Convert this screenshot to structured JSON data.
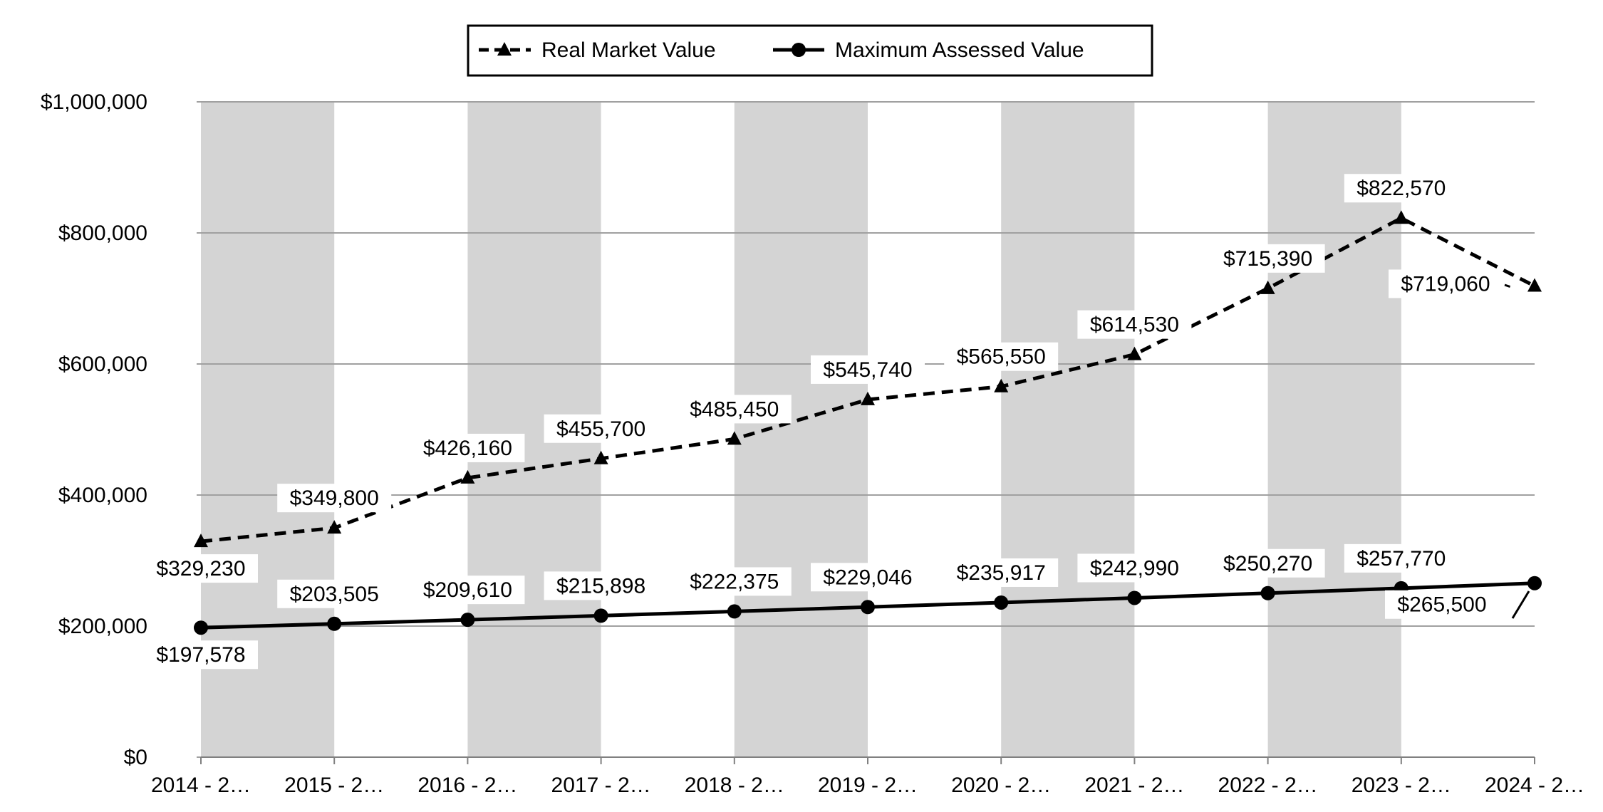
{
  "chart_data": {
    "type": "line",
    "categories": [
      "2014 - 2…",
      "2015 - 2…",
      "2016 - 2…",
      "2017 - 2…",
      "2018 - 2…",
      "2019 - 2…",
      "2020 - 2…",
      "2021 - 2…",
      "2022 - 2…",
      "2023 - 2…",
      "2024 - 2…"
    ],
    "series": [
      {
        "name": "Real Market Value",
        "line_style": "dashed",
        "marker": "triangle",
        "values": [
          329230,
          349800,
          426160,
          455700,
          485450,
          545740,
          565550,
          614530,
          715390,
          822570,
          719060
        ],
        "labels": [
          "$329,230",
          "$349,800",
          "$426,160",
          "$455,700",
          "$485,450",
          "$545,740",
          "$565,550",
          "$614,530",
          "$715,390",
          "$822,570",
          "$719,060"
        ]
      },
      {
        "name": "Maximum Assessed Value",
        "line_style": "solid",
        "marker": "circle",
        "values": [
          197578,
          203505,
          209610,
          215898,
          222375,
          229046,
          235917,
          242990,
          250270,
          257770,
          265500
        ],
        "labels": [
          "$197,578",
          "$203,505",
          "$209,610",
          "$215,898",
          "$222,375",
          "$229,046",
          "$235,917",
          "$242,990",
          "$250,270",
          "$257,770",
          "$265,500"
        ]
      }
    ],
    "ylim": [
      0,
      1000000
    ],
    "yticks": [
      0,
      200000,
      400000,
      600000,
      800000,
      1000000
    ],
    "ytick_labels": [
      "$0",
      "$200,000",
      "$400,000",
      "$600,000",
      "$800,000",
      "$1,000,000"
    ],
    "legend_position": "top-center",
    "grid": true,
    "colors": {
      "line": "#000000",
      "band": "#d4d4d4",
      "grid": "#a0a0a0"
    }
  }
}
